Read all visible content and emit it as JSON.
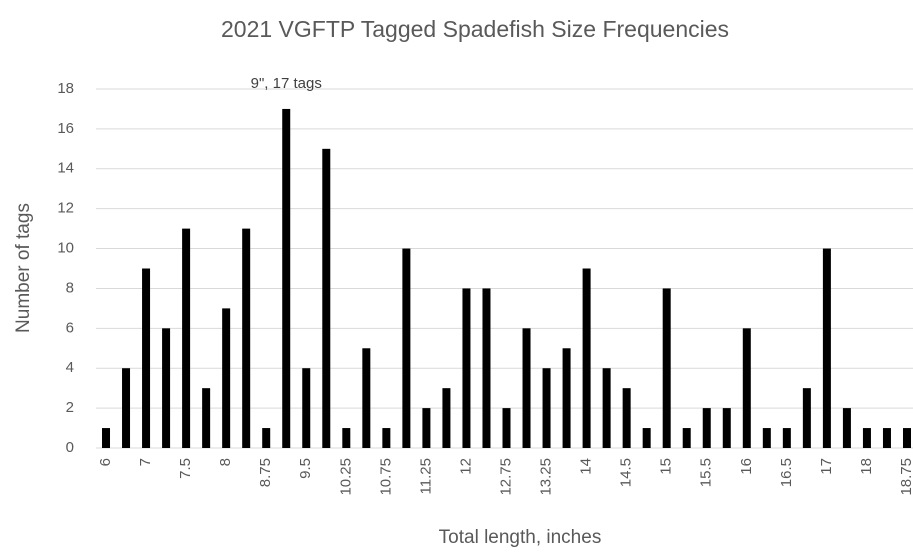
{
  "chart_data": {
    "type": "bar",
    "title": "2021 VGFTP Tagged Spadefish Size Frequencies",
    "xlabel": "Total length, inches",
    "ylabel": "Number of tags",
    "annotation": "9\", 17 tags",
    "categories": [
      "6",
      null,
      "7",
      null,
      "7.5",
      null,
      "8",
      null,
      "8.75",
      null,
      "9.5",
      null,
      "10.25",
      null,
      "10.75",
      null,
      "11.25",
      null,
      "12",
      null,
      "12.75",
      null,
      "13.25",
      null,
      "14",
      null,
      "14.5",
      null,
      "15",
      null,
      "15.5",
      null,
      "16",
      null,
      "16.5",
      null,
      "17",
      null,
      "18",
      null,
      "18.75"
    ],
    "values": [
      1,
      4,
      9,
      6,
      11,
      3,
      7,
      11,
      1,
      17,
      4,
      15,
      1,
      5,
      1,
      10,
      2,
      3,
      8,
      8,
      2,
      6,
      4,
      5,
      9,
      4,
      3,
      1,
      8,
      1,
      2,
      2,
      6,
      1,
      1,
      3,
      10,
      2,
      1,
      1,
      1
    ],
    "color": "#000000",
    "ylim": [
      0,
      18
    ],
    "yticks": [
      0,
      2,
      4,
      6,
      8,
      10,
      12,
      14,
      16,
      18
    ],
    "grid": true
  }
}
